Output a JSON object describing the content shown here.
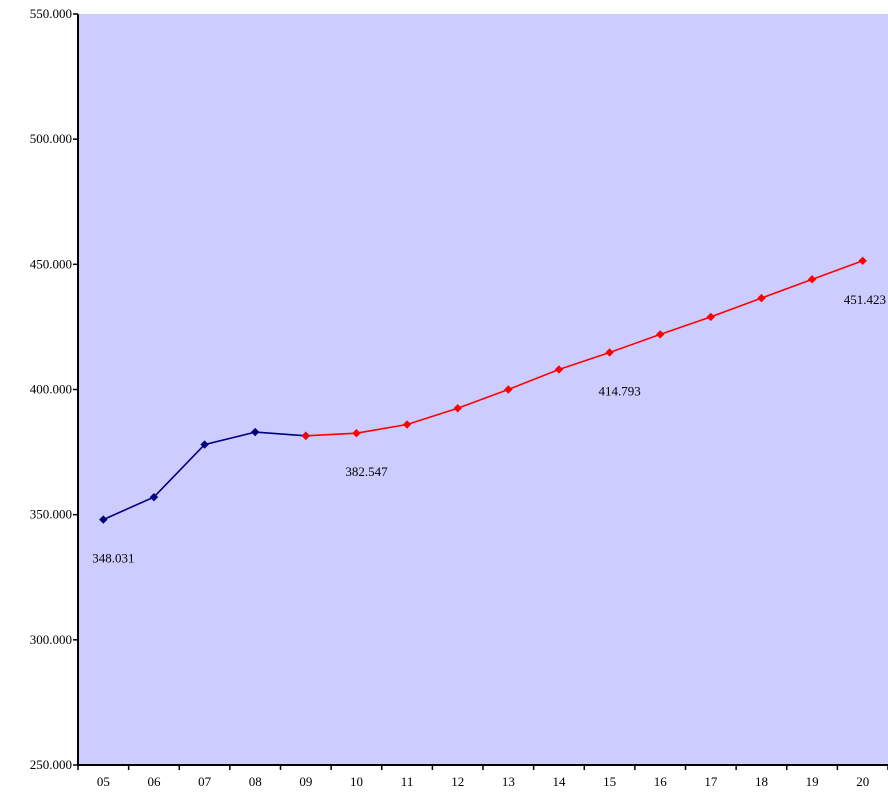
{
  "chart_data": {
    "type": "line",
    "title": "",
    "xlabel": "",
    "ylabel": "",
    "categories": [
      "05",
      "06",
      "07",
      "08",
      "09",
      "10",
      "11",
      "12",
      "13",
      "14",
      "15",
      "16",
      "17",
      "18",
      "19",
      "20"
    ],
    "ylim": [
      250000,
      550000
    ],
    "y_ticks": [
      {
        "value": 250000,
        "label": "250.000"
      },
      {
        "value": 300000,
        "label": "300.000"
      },
      {
        "value": 350000,
        "label": "350.000"
      },
      {
        "value": 400000,
        "label": "400.000"
      },
      {
        "value": 450000,
        "label": "450.000"
      },
      {
        "value": 500000,
        "label": "500.000"
      },
      {
        "value": 550000,
        "label": "550.000"
      }
    ],
    "grid": false,
    "legend": "none",
    "series": [
      {
        "color": "#000080",
        "x": [
          "05",
          "06",
          "07",
          "08",
          "09"
        ],
        "values": [
          348031,
          357000,
          378000,
          383000,
          381500
        ]
      },
      {
        "color": "#ff0000",
        "x": [
          "09",
          "10",
          "11",
          "12",
          "13",
          "14",
          "15",
          "16",
          "17",
          "18",
          "19",
          "20"
        ],
        "values": [
          381500,
          382547,
          386000,
          392500,
          400000,
          408000,
          414793,
          422000,
          429000,
          436500,
          444000,
          451423
        ]
      }
    ],
    "annotations": [
      {
        "x": "05",
        "y": 348031,
        "text": "348.031"
      },
      {
        "x": "10",
        "y": 382547,
        "text": "382.547"
      },
      {
        "x": "15",
        "y": 414793,
        "text": "414.793"
      },
      {
        "x": "20",
        "y": 451423,
        "text": "451.423"
      }
    ],
    "colors": {
      "plot_background": "#ccccff",
      "axis": "#000000"
    }
  }
}
